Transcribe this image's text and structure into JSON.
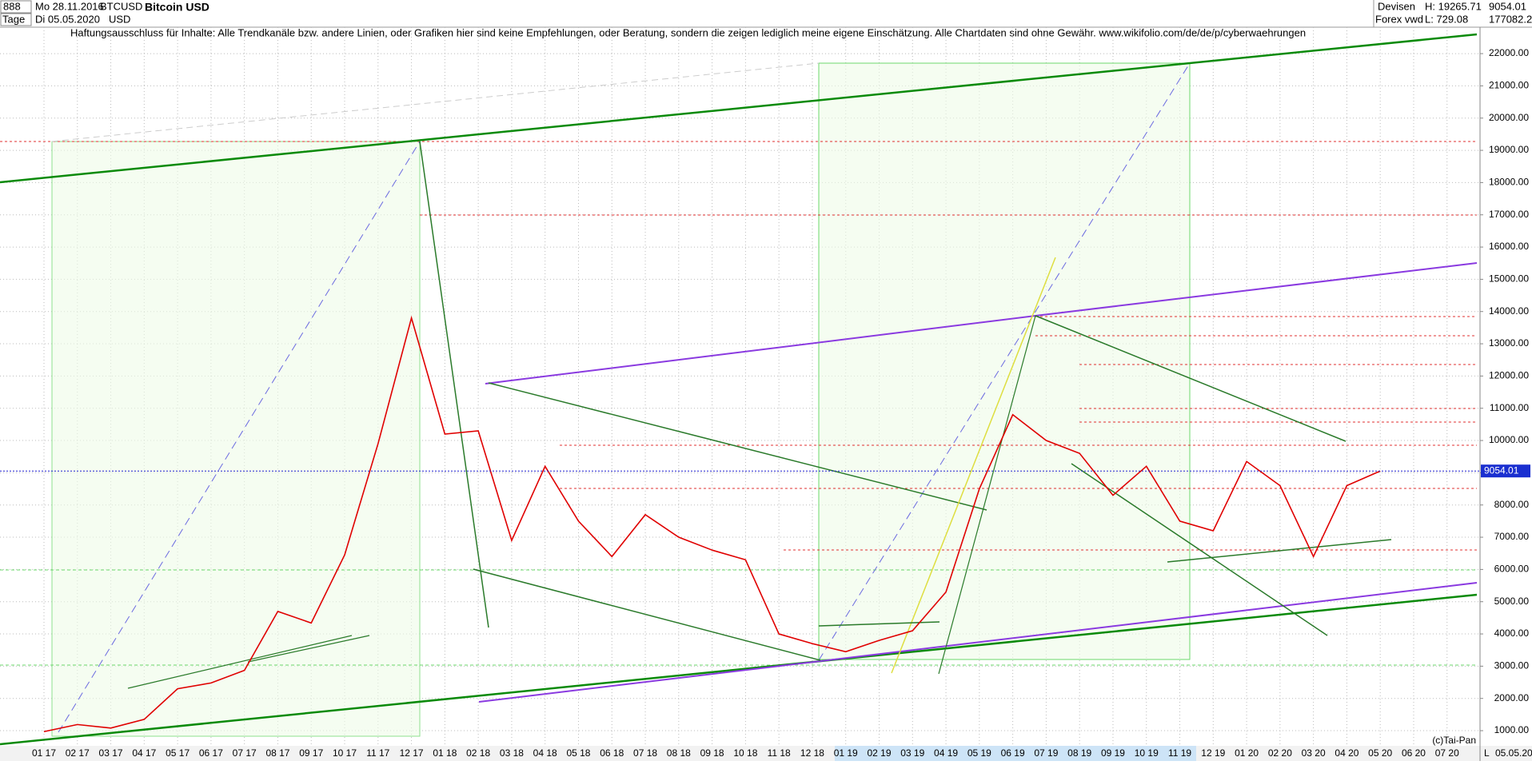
{
  "header": {
    "interval": "888",
    "start_date": "Mo 28.11.2016",
    "symbol": "BTCUSD",
    "title": "Bitcoin USD",
    "period": "Tage",
    "end_date": "Di 05.05.2020",
    "currency": "USD",
    "market": "Devisen",
    "source": "Forex vwd",
    "high": "H: 19265.71",
    "low": "L: 729.08",
    "last": "9054.01",
    "volume": "177082.2",
    "disclaimer": "Haftungsausschluss für Inhalte: Alle Trendkanäle bzw. andere Linien, oder Grafiken hier sind keine Empfehlungen, oder Beratung, sondern die zeigen lediglich meine eigene Einschätzung. Alle Chartdaten sind ohne Gewähr.  www.wikifolio.com/de/de/p/cyberwaehrungen",
    "copyright": "(c)Tai-Pan",
    "footer_date": "05.05.20",
    "footer_mode": "L"
  },
  "chart_data": {
    "type": "line",
    "title": "Bitcoin USD",
    "categories": [
      "01 17",
      "02 17",
      "03 17",
      "04 17",
      "05 17",
      "06 17",
      "07 17",
      "08 17",
      "09 17",
      "10 17",
      "11 17",
      "12 17",
      "01 18",
      "02 18",
      "03 18",
      "04 18",
      "05 18",
      "06 18",
      "07 18",
      "08 18",
      "09 18",
      "10 18",
      "11 18",
      "12 18",
      "01 19",
      "02 19",
      "03 19",
      "04 19",
      "05 19",
      "06 19",
      "07 19",
      "08 19",
      "09 19",
      "10 19",
      "11 19",
      "12 19",
      "01 20",
      "02 20",
      "03 20",
      "04 20",
      "05 20",
      "06 20",
      "07 20"
    ],
    "series": [
      {
        "name": "BTCUSD",
        "color": "#e00000",
        "values": [
          970,
          1190,
          1080,
          1350,
          2300,
          2480,
          2870,
          4700,
          4340,
          6450,
          9900,
          13800,
          10200,
          10300,
          6900,
          9200,
          7500,
          6400,
          7700,
          7000,
          6600,
          6300,
          4000,
          3700,
          3450,
          3800,
          4100,
          5300,
          8500,
          10800,
          10000,
          9600,
          8300,
          9200,
          7500,
          7200,
          9350,
          8600,
          6400,
          8600,
          9054.01,
          null,
          null
        ]
      }
    ],
    "current_price": 9054.01,
    "ylim": [
      530,
      22820
    ],
    "yticks": [
      {
        "value": 1000,
        "label": "1000.00"
      },
      {
        "value": 2000,
        "label": "2000.00"
      },
      {
        "value": 3000,
        "label": "3000.00"
      },
      {
        "value": 4000,
        "label": "4000.00"
      },
      {
        "value": 5000,
        "label": "5000.00"
      },
      {
        "value": 6000,
        "label": "6000.00"
      },
      {
        "value": 7000,
        "label": "7000.00"
      },
      {
        "value": 8000,
        "label": "8000.00"
      },
      {
        "value": 9000,
        "label": "9000.00"
      },
      {
        "value": 10000,
        "label": "10000.00"
      },
      {
        "value": 11000,
        "label": "11000.00"
      },
      {
        "value": 12000,
        "label": "12000.00"
      },
      {
        "value": 13000,
        "label": "13000.00"
      },
      {
        "value": 14000,
        "label": "14000.00"
      },
      {
        "value": 15000,
        "label": "15000.00"
      },
      {
        "value": 16000,
        "label": "16000.00"
      },
      {
        "value": 17000,
        "label": "17000.00"
      },
      {
        "value": 18000,
        "label": "18000.00"
      },
      {
        "value": 19000,
        "label": "19000.00"
      },
      {
        "value": 20000,
        "label": "20000.00"
      },
      {
        "value": 21000,
        "label": "21000.00"
      },
      {
        "value": 22000,
        "label": "22000.00"
      }
    ],
    "grid": true
  }
}
